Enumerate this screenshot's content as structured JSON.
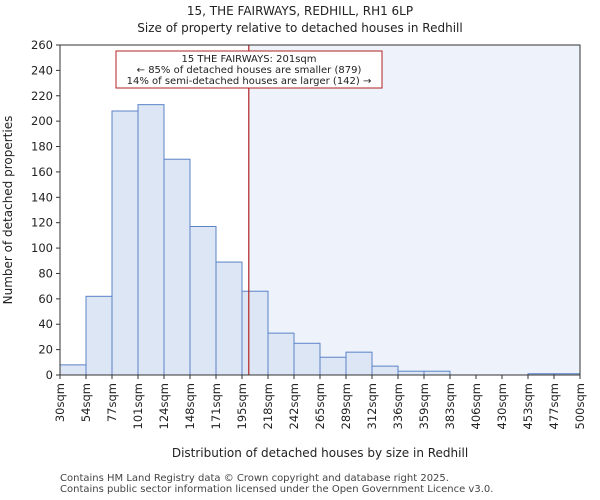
{
  "chart_data": {
    "type": "bar",
    "title": "15, THE FAIRWAYS, REDHILL, RH1 6LP",
    "subtitle": "Size of property relative to detached houses in Redhill",
    "xlabel": "Distribution of detached houses by size in Redhill",
    "ylabel": "Number of detached properties",
    "ylim": [
      0,
      260
    ],
    "yticks": [
      0,
      20,
      40,
      60,
      80,
      100,
      120,
      140,
      160,
      180,
      200,
      220,
      240,
      260
    ],
    "bin_edges_sqm": [
      30,
      54,
      77,
      101,
      124,
      148,
      171,
      195,
      218,
      242,
      265,
      289,
      312,
      336,
      359,
      383,
      406,
      430,
      453,
      477,
      500
    ],
    "xtick_labels": [
      "30sqm",
      "54sqm",
      "77sqm",
      "101sqm",
      "124sqm",
      "148sqm",
      "171sqm",
      "195sqm",
      "218sqm",
      "242sqm",
      "265sqm",
      "289sqm",
      "312sqm",
      "336sqm",
      "359sqm",
      "383sqm",
      "406sqm",
      "430sqm",
      "453sqm",
      "477sqm",
      "500sqm"
    ],
    "values": [
      8,
      62,
      208,
      213,
      170,
      117,
      89,
      66,
      33,
      25,
      14,
      18,
      7,
      3,
      3,
      0,
      0,
      0,
      1,
      1
    ],
    "marker_sqm": 201,
    "colors": {
      "bar_fill": "#dce6f5",
      "bar_edge": "#5b83c7",
      "marker": "#b22222",
      "shade": "#eef3fb"
    },
    "annotation": {
      "line1": "15 THE FAIRWAYS: 201sqm",
      "line2": "← 85% of detached houses are smaller (879)",
      "line3": "14% of semi-detached houses are larger (142) →"
    }
  },
  "footer": {
    "line1": "Contains HM Land Registry data © Crown copyright and database right 2025.",
    "line2": "Contains public sector information licensed under the Open Government Licence v3.0."
  }
}
